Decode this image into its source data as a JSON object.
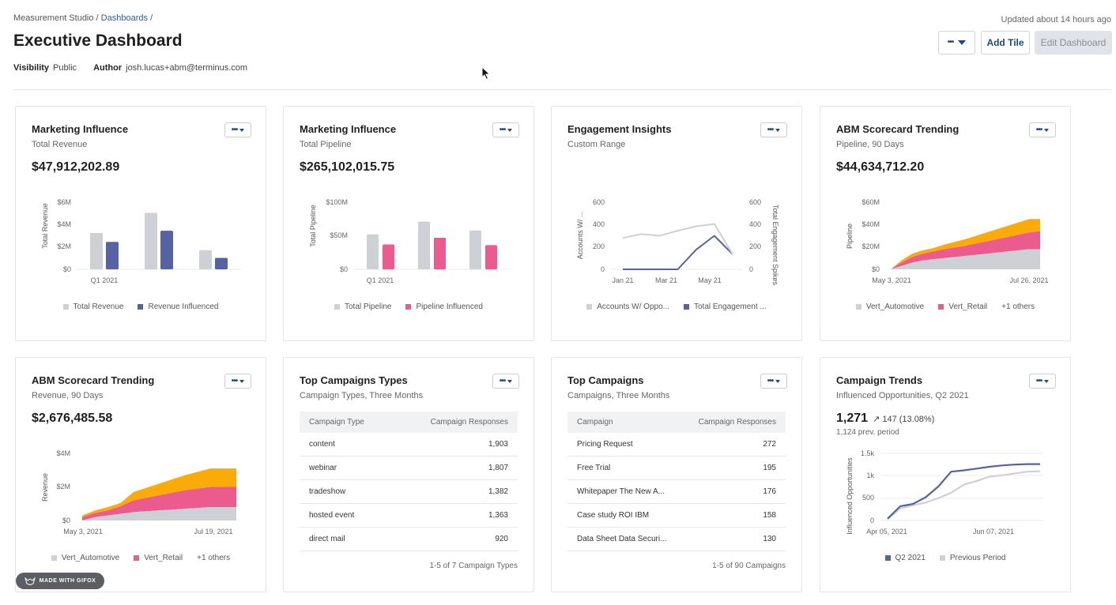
{
  "breadcrumb": {
    "root": "Measurement Studio",
    "sep1": " / ",
    "link": "Dashboards",
    "sep2": " /"
  },
  "page_title": "Executive Dashboard",
  "meta": {
    "visibility_label": "Visibility",
    "visibility_value": "Public",
    "author_label": "Author",
    "author_value": "josh.lucas+abm@terminus.com"
  },
  "updated": "Updated about 14 hours ago",
  "header_buttons": {
    "more": "•••",
    "add_tile": "Add Tile",
    "edit_dashboard": "Edit Dashboard"
  },
  "colors": {
    "gray": "#cdd1d6",
    "navy": "#5563a5",
    "pink": "#ec5b8d",
    "orange": "#fbab07",
    "link": "#2b5d9c"
  },
  "icons": {
    "more": "dots-icon",
    "caret": "caret-down-icon",
    "cursor": "mouse-cursor-icon",
    "gifox": "fox-logo-icon"
  },
  "tiles": [
    {
      "title": "Marketing Influence",
      "subtitle": "Total Revenue",
      "value": "$47,912,202.89"
    },
    {
      "title": "Marketing Influence",
      "subtitle": "Total Pipeline",
      "value": "$265,102,015.75"
    },
    {
      "title": "Engagement Insights",
      "subtitle": "Custom Range",
      "value": ""
    },
    {
      "title": "ABM Scorecard Trending",
      "subtitle": "Pipeline, 90 Days",
      "value": "$44,634,712.20"
    },
    {
      "title": "ABM Scorecard Trending",
      "subtitle": "Revenue, 90 Days",
      "value": "$2,676,485.58"
    },
    {
      "title": "Top Campaigns Types",
      "subtitle": "Campaign Types, Three Months",
      "value": ""
    },
    {
      "title": "Top Campaigns",
      "subtitle": "Campaigns, Three Months",
      "value": ""
    },
    {
      "title": "Campaign Trends",
      "subtitle": "Influenced Opportunities, Q2 2021",
      "value": "1,271"
    }
  ],
  "chart_data": [
    {
      "type": "bar",
      "ylabel": "Total Revenue",
      "yticks": [
        "$6M",
        "$4M",
        "$2M",
        "$0"
      ],
      "ylim": [
        0,
        6
      ],
      "categories": [
        "Q1 2021",
        "",
        ""
      ],
      "series": [
        {
          "name": "Total Revenue",
          "color": "#cdd1d6",
          "values": [
            3.25,
            5.05,
            1.72
          ]
        },
        {
          "name": "Revenue Influenced",
          "color": "#5563a5",
          "values": [
            2.45,
            3.45,
            1.02
          ]
        }
      ]
    },
    {
      "type": "bar",
      "ylabel": "Total Pipeline",
      "yticks": [
        "$100M",
        "$50M",
        "$0"
      ],
      "ylim": [
        0,
        100
      ],
      "categories": [
        "Q1 2021",
        "",
        ""
      ],
      "series": [
        {
          "name": "Total Pipeline",
          "color": "#cdd1d6",
          "values": [
            52,
            71,
            58
          ]
        },
        {
          "name": "Pipeline Influenced",
          "color": "#ec5b8d",
          "values": [
            37,
            47,
            36
          ]
        }
      ]
    },
    {
      "type": "line",
      "ylabel": "Accounts W/ ...",
      "y2label": "Total Engagement Spikes",
      "yticks": [
        "600",
        "400",
        "200",
        "0"
      ],
      "y2ticks": [
        "600",
        "400",
        "200",
        "0"
      ],
      "ylim": [
        0,
        600
      ],
      "xticks": [
        "Jan 21",
        "Mar 21",
        "May 21"
      ],
      "x": [
        0,
        1,
        2,
        3,
        4,
        5,
        6
      ],
      "series": [
        {
          "name": "Accounts W/ Oppo...",
          "color": "#cdd1d6",
          "values": [
            280,
            315,
            300,
            345,
            385,
            405,
            135
          ]
        },
        {
          "name": "Total Engagement ...",
          "color": "#5563a5",
          "values": [
            0,
            0,
            0,
            0,
            175,
            300,
            135
          ]
        }
      ]
    },
    {
      "type": "area",
      "ylabel": "Pipeline",
      "yticks": [
        "$60M",
        "$40M",
        "$20M",
        "$0"
      ],
      "ylim": [
        0,
        60
      ],
      "xticks": [
        "May 3, 2021",
        "Jul 26, 2021"
      ],
      "series": [
        {
          "name": "Vert_Automotive",
          "color": "#cdd1d6",
          "values": [
            0,
            3,
            6,
            8,
            9,
            10,
            11,
            12,
            13,
            14,
            15,
            16,
            17,
            18,
            18
          ]
        },
        {
          "name": "Vert_Retail",
          "color": "#ec5b8d",
          "values": [
            0,
            3,
            5,
            6,
            7,
            8,
            8.5,
            9,
            10,
            11,
            12,
            13,
            14,
            15,
            16
          ]
        },
        {
          "name": "+1 others",
          "color": "#fbab07",
          "values": [
            0,
            2,
            3,
            3,
            3,
            4,
            5,
            6,
            7,
            8,
            9,
            10,
            11,
            12,
            11
          ]
        }
      ]
    },
    {
      "type": "area",
      "ylabel": "Revenue",
      "yticks": [
        "$4M",
        "$2M",
        "$0"
      ],
      "ylim": [
        0,
        4
      ],
      "xticks": [
        "May 3, 2021",
        "Jul 19, 2021"
      ],
      "series": [
        {
          "name": "Vert_Automotive",
          "color": "#cdd1d6",
          "values": [
            0,
            0.2,
            0.3,
            0.4,
            0.5,
            0.55,
            0.6,
            0.65,
            0.7,
            0.75,
            0.8,
            0.8,
            0.8
          ]
        },
        {
          "name": "Vert_Retail",
          "color": "#ec5b8d",
          "values": [
            0.2,
            0.25,
            0.3,
            0.45,
            0.7,
            0.8,
            0.9,
            1.0,
            1.1,
            1.15,
            1.2,
            1.2,
            1.2
          ]
        },
        {
          "name": "+1 others",
          "color": "#fbab07",
          "values": [
            0.1,
            0.15,
            0.2,
            0.2,
            0.5,
            0.6,
            0.7,
            0.8,
            0.9,
            1.0,
            1.1,
            1.1,
            1.1
          ]
        }
      ]
    },
    {
      "type": "line",
      "ylabel": "Influenced Opportunities",
      "yticks": [
        "1.5k",
        "1k",
        "500",
        "0"
      ],
      "ylim": [
        0,
        1500
      ],
      "xticks": [
        "Apr 05, 2021",
        "Jun 07, 2021"
      ],
      "series": [
        {
          "name": "Q2 2021",
          "color": "#5563a5",
          "values": [
            40,
            320,
            370,
            520,
            760,
            1090,
            1120,
            1160,
            1200,
            1230,
            1250,
            1260,
            1260
          ]
        },
        {
          "name": "Previous Period",
          "color": "#cdd1d6",
          "values": [
            30,
            270,
            340,
            400,
            500,
            620,
            800,
            880,
            980,
            1010,
            1050,
            1090,
            1100
          ]
        }
      ]
    }
  ],
  "tables": [
    {
      "headers": [
        "Campaign Type",
        "Campaign Responses"
      ],
      "rows": [
        [
          "content",
          "1,903"
        ],
        [
          "webinar",
          "1,807"
        ],
        [
          "tradeshow",
          "1,382"
        ],
        [
          "hosted event",
          "1,363"
        ],
        [
          "direct mail",
          "920"
        ]
      ],
      "footer": "1-5 of 7 Campaign Types"
    },
    {
      "headers": [
        "Campaign",
        "Campaign Responses"
      ],
      "rows": [
        [
          "Pricing Request",
          "272"
        ],
        [
          "Free Trial",
          "195"
        ],
        [
          "Whitepaper The New A...",
          "176"
        ],
        [
          "Case study ROI IBM",
          "158"
        ],
        [
          "Data Sheet Data Securi...",
          "130"
        ]
      ],
      "footer": "1-5 of 90 Campaigns"
    }
  ],
  "trends": {
    "change": "147 (13.08%)",
    "prev": "1,124 prev. period"
  },
  "gifox": "MADE WITH GIFOX"
}
